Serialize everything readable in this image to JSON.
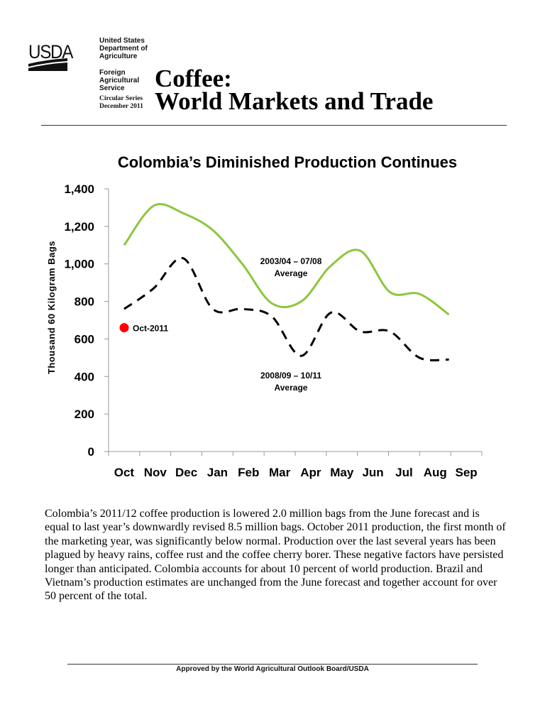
{
  "header": {
    "logo": "USDA",
    "agency_lines": [
      "United States",
      "Department of",
      "Agriculture"
    ],
    "service_lines": [
      "Foreign",
      "Agricultural",
      "Service"
    ],
    "series_lines": [
      "Circular Series",
      "December 2011"
    ],
    "title_line1": "Coffee:",
    "title_line2": "World Markets and Trade"
  },
  "chart_data": {
    "type": "line",
    "title": "Colombia’s Diminished Production Continues",
    "xlabel": "",
    "ylabel": "Thousand 60 Kilogram Bags",
    "ylim": [
      0,
      1400
    ],
    "yticks": [
      "0",
      "200",
      "400",
      "600",
      "800",
      "1,000",
      "1,200",
      "1,400"
    ],
    "ytick_values": [
      0,
      200,
      400,
      600,
      800,
      1000,
      1200,
      1400
    ],
    "categories": [
      "Oct",
      "Nov",
      "Dec",
      "Jan",
      "Feb",
      "Mar",
      "Apr",
      "May",
      "Jun",
      "Jul",
      "Aug",
      "Sep"
    ],
    "grid": false,
    "series": [
      {
        "name": "2003/04 – 07/08 Average",
        "label_lines": [
          "2003/04 – 07/08",
          "Average"
        ],
        "color": "#8cc63f",
        "style": "solid",
        "values": [
          1100,
          1310,
          1270,
          1180,
          1000,
          790,
          800,
          990,
          1070,
          850,
          840,
          730
        ]
      },
      {
        "name": "2008/09 – 10/11 Average",
        "label_lines": [
          "2008/09 – 10/11",
          "Average"
        ],
        "color": "#000000",
        "style": "dashed",
        "values": [
          760,
          870,
          1030,
          760,
          760,
          720,
          510,
          740,
          640,
          640,
          500,
          490
        ]
      }
    ],
    "points": [
      {
        "name": "Oct-2011",
        "category": "Oct",
        "value": 660,
        "color": "#ff0000"
      }
    ]
  },
  "body": {
    "paragraph": "Colombia’s 2011/12 coffee production is lowered 2.0 million bags from the June forecast and is equal to last year’s downwardly revised 8.5 million bags.  October 2011 production, the first month of the marketing year, was significantly below normal.  Production over the last several years has been plagued by heavy rains, coffee rust and the coffee cherry borer.  These negative factors have persisted longer than anticipated.  Colombia accounts for about 10 percent of world production.  Brazil and Vietnam’s production estimates are unchanged from the June forecast and together account for over 50 percent of the total."
  },
  "footer": {
    "text": "Approved by the World Agricultural Outlook Board/USDA"
  }
}
